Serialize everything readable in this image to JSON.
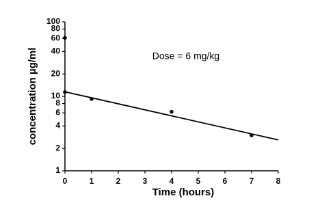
{
  "chart_data": {
    "type": "scatter",
    "x_label": "Time (hours)",
    "y_label": "concentration µg/ml",
    "annotation": "Dose = 6 mg/kg",
    "xlim": [
      0,
      8
    ],
    "xticks": [
      0,
      1,
      2,
      3,
      4,
      5,
      6,
      7,
      8
    ],
    "ylim": [
      1,
      100
    ],
    "yticks": [
      1,
      2,
      4,
      6,
      8,
      10,
      20,
      40,
      60,
      80,
      100
    ],
    "y_scale": "log",
    "series": [
      {
        "mode": "markers",
        "color": "#000000",
        "x": [
          0,
          0,
          1,
          4,
          7
        ],
        "values": [
          61,
          11.4,
          9.2,
          6.2,
          3.0
        ]
      },
      {
        "mode": "line",
        "color": "#000000",
        "x": [
          0,
          8
        ],
        "values": [
          11.5,
          2.6
        ]
      }
    ]
  }
}
